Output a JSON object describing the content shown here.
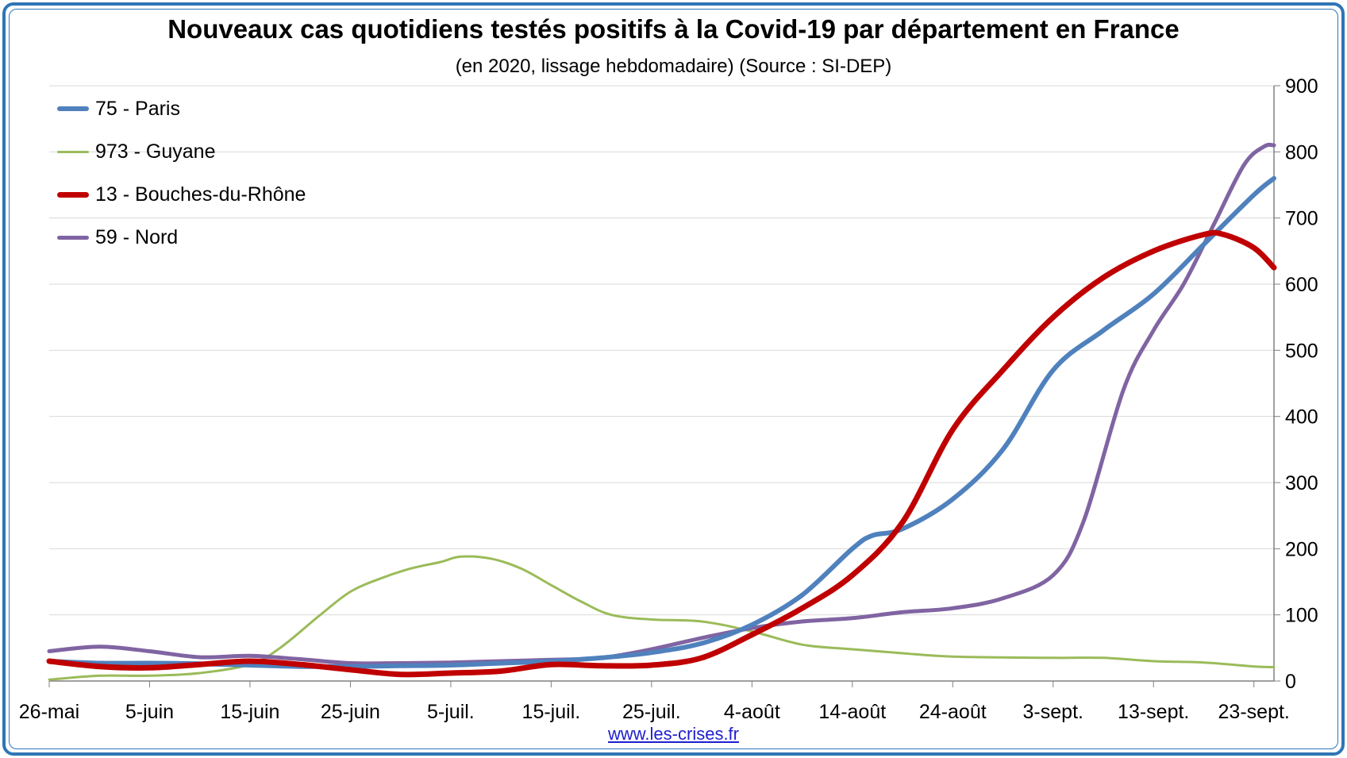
{
  "header": {
    "title": "Nouveaux cas quotidiens testés positifs à la Covid-19 par département en France",
    "subtitle": "(en 2020, lissage hebdomadaire) (Source : SI-DEP)"
  },
  "footer": {
    "link_text": "www.les-crises.fr"
  },
  "colors": {
    "frame": "#2e75b6",
    "grid": "#d9d9d9",
    "link": "#1f1fcf"
  },
  "chart_data": {
    "type": "line",
    "title": "Nouveaux cas quotidiens testés positifs à la Covid-19 par département en France",
    "subtitle": "(en 2020, lissage hebdomadaire) (Source : SI-DEP)",
    "xlabel": "",
    "ylabel": "",
    "x_range": [
      "2020-05-26",
      "2020-09-25"
    ],
    "y_axis_position": "right",
    "ylim": [
      0,
      900
    ],
    "yticks": [
      0,
      100,
      200,
      300,
      400,
      500,
      600,
      700,
      800,
      900
    ],
    "xtick_labels": [
      "26-mai",
      "5-juin",
      "15-juin",
      "25-juin",
      "5-juil.",
      "15-juil.",
      "25-juil.",
      "4-août",
      "14-août",
      "24-août",
      "3-sept.",
      "13-sept.",
      "23-sept."
    ],
    "xtick_dates": [
      "2020-05-26",
      "2020-06-05",
      "2020-06-15",
      "2020-06-25",
      "2020-07-05",
      "2020-07-15",
      "2020-07-25",
      "2020-08-04",
      "2020-08-14",
      "2020-08-24",
      "2020-09-03",
      "2020-09-13",
      "2020-09-23"
    ],
    "grid": true,
    "legend_position": "top-left",
    "series": [
      {
        "name": "75 - Paris",
        "color": "#4f81bd",
        "width": 6,
        "points": [
          [
            "2020-05-26",
            30
          ],
          [
            "2020-05-31",
            27
          ],
          [
            "2020-06-05",
            27
          ],
          [
            "2020-06-10",
            26
          ],
          [
            "2020-06-15",
            24
          ],
          [
            "2020-06-20",
            22
          ],
          [
            "2020-06-25",
            22
          ],
          [
            "2020-06-30",
            23
          ],
          [
            "2020-07-05",
            24
          ],
          [
            "2020-07-10",
            27
          ],
          [
            "2020-07-15",
            30
          ],
          [
            "2020-07-20",
            35
          ],
          [
            "2020-07-25",
            43
          ],
          [
            "2020-07-30",
            57
          ],
          [
            "2020-08-04",
            85
          ],
          [
            "2020-08-09",
            130
          ],
          [
            "2020-08-14",
            200
          ],
          [
            "2020-08-16",
            220
          ],
          [
            "2020-08-19",
            230
          ],
          [
            "2020-08-24",
            275
          ],
          [
            "2020-08-29",
            350
          ],
          [
            "2020-09-03",
            470
          ],
          [
            "2020-09-08",
            530
          ],
          [
            "2020-09-13",
            585
          ],
          [
            "2020-09-18",
            660
          ],
          [
            "2020-09-23",
            735
          ],
          [
            "2020-09-25",
            760
          ]
        ]
      },
      {
        "name": "973 - Guyane",
        "color": "#9bbb59",
        "width": 3,
        "points": [
          [
            "2020-05-26",
            2
          ],
          [
            "2020-05-31",
            8
          ],
          [
            "2020-06-05",
            8
          ],
          [
            "2020-06-10",
            12
          ],
          [
            "2020-06-15",
            25
          ],
          [
            "2020-06-18",
            50
          ],
          [
            "2020-06-22",
            100
          ],
          [
            "2020-06-25",
            135
          ],
          [
            "2020-06-28",
            155
          ],
          [
            "2020-07-01",
            170
          ],
          [
            "2020-07-04",
            180
          ],
          [
            "2020-07-06",
            188
          ],
          [
            "2020-07-09",
            185
          ],
          [
            "2020-07-12",
            170
          ],
          [
            "2020-07-15",
            145
          ],
          [
            "2020-07-18",
            120
          ],
          [
            "2020-07-21",
            100
          ],
          [
            "2020-07-25",
            93
          ],
          [
            "2020-07-30",
            90
          ],
          [
            "2020-08-04",
            75
          ],
          [
            "2020-08-09",
            55
          ],
          [
            "2020-08-14",
            48
          ],
          [
            "2020-08-19",
            42
          ],
          [
            "2020-08-24",
            37
          ],
          [
            "2020-09-03",
            35
          ],
          [
            "2020-09-08",
            35
          ],
          [
            "2020-09-13",
            30
          ],
          [
            "2020-09-18",
            28
          ],
          [
            "2020-09-23",
            22
          ],
          [
            "2020-09-25",
            21
          ]
        ]
      },
      {
        "name": "13 - Bouches-du-Rhône",
        "color": "#c00000",
        "width": 7,
        "points": [
          [
            "2020-05-26",
            30
          ],
          [
            "2020-05-31",
            22
          ],
          [
            "2020-06-05",
            20
          ],
          [
            "2020-06-10",
            25
          ],
          [
            "2020-06-15",
            30
          ],
          [
            "2020-06-20",
            25
          ],
          [
            "2020-06-25",
            17
          ],
          [
            "2020-06-30",
            10
          ],
          [
            "2020-07-05",
            12
          ],
          [
            "2020-07-10",
            15
          ],
          [
            "2020-07-15",
            25
          ],
          [
            "2020-07-20",
            23
          ],
          [
            "2020-07-25",
            24
          ],
          [
            "2020-07-30",
            35
          ],
          [
            "2020-08-04",
            70
          ],
          [
            "2020-08-09",
            110
          ],
          [
            "2020-08-14",
            160
          ],
          [
            "2020-08-19",
            240
          ],
          [
            "2020-08-24",
            380
          ],
          [
            "2020-08-29",
            470
          ],
          [
            "2020-09-03",
            550
          ],
          [
            "2020-09-08",
            610
          ],
          [
            "2020-09-13",
            650
          ],
          [
            "2020-09-18",
            675
          ],
          [
            "2020-09-20",
            675
          ],
          [
            "2020-09-23",
            655
          ],
          [
            "2020-09-25",
            625
          ]
        ]
      },
      {
        "name": "59 - Nord",
        "color": "#8064a2",
        "width": 5,
        "points": [
          [
            "2020-05-26",
            45
          ],
          [
            "2020-05-31",
            52
          ],
          [
            "2020-06-05",
            45
          ],
          [
            "2020-06-10",
            36
          ],
          [
            "2020-06-15",
            38
          ],
          [
            "2020-06-20",
            33
          ],
          [
            "2020-06-25",
            27
          ],
          [
            "2020-06-30",
            27
          ],
          [
            "2020-07-05",
            28
          ],
          [
            "2020-07-10",
            30
          ],
          [
            "2020-07-15",
            32
          ],
          [
            "2020-07-20",
            35
          ],
          [
            "2020-07-25",
            48
          ],
          [
            "2020-07-30",
            65
          ],
          [
            "2020-08-04",
            80
          ],
          [
            "2020-08-09",
            90
          ],
          [
            "2020-08-14",
            95
          ],
          [
            "2020-08-19",
            104
          ],
          [
            "2020-08-24",
            110
          ],
          [
            "2020-08-29",
            125
          ],
          [
            "2020-09-03",
            160
          ],
          [
            "2020-09-06",
            240
          ],
          [
            "2020-09-10",
            440
          ],
          [
            "2020-09-13",
            530
          ],
          [
            "2020-09-16",
            600
          ],
          [
            "2020-09-19",
            690
          ],
          [
            "2020-09-22",
            780
          ],
          [
            "2020-09-24",
            808
          ],
          [
            "2020-09-25",
            810
          ]
        ]
      }
    ]
  }
}
